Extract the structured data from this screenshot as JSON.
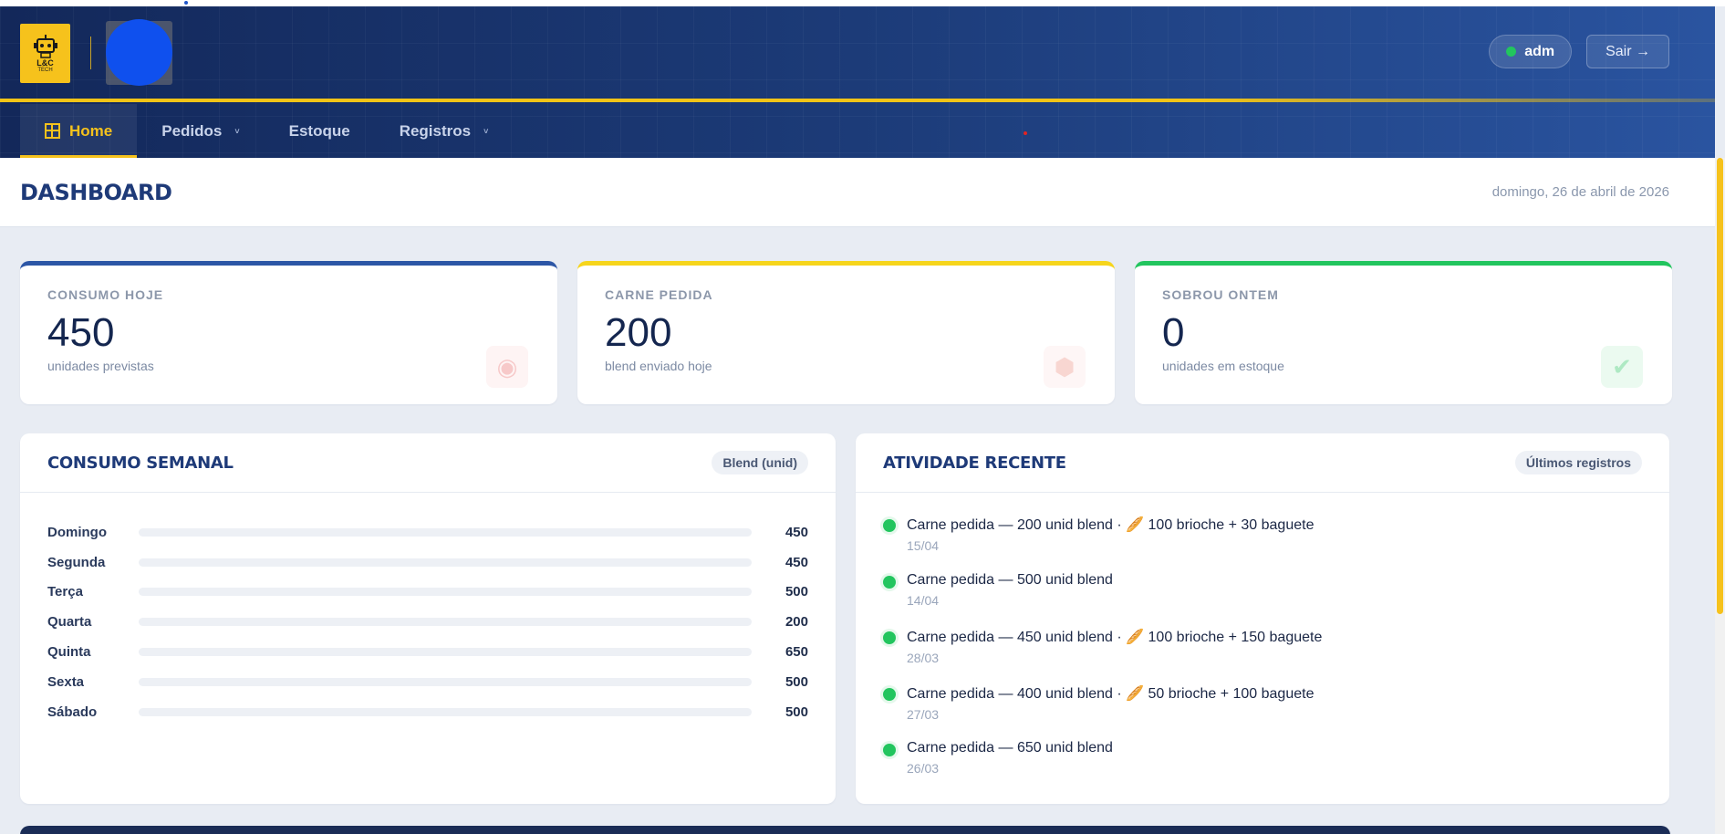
{
  "brand": {
    "logo_text": "L&C",
    "logo_sub": "TECH"
  },
  "header": {
    "user_name": "adm",
    "logout_label": "Sair →"
  },
  "nav": {
    "items": [
      {
        "label": "Home",
        "active": true
      },
      {
        "label": "Pedidos",
        "caret": "˅"
      },
      {
        "label": "Estoque"
      },
      {
        "label": "Registros",
        "caret": "˅"
      }
    ]
  },
  "page": {
    "title": "DASHBOARD",
    "date": "domingo, 26 de abril de 2026"
  },
  "stats": [
    {
      "label": "CONSUMO HOJE",
      "value": "450",
      "sub": "unidades previstas",
      "icon": "meat-icon"
    },
    {
      "label": "CARNE PEDIDA",
      "value": "200",
      "sub": "blend enviado hoje",
      "icon": "box-icon"
    },
    {
      "label": "SOBROU ONTEM",
      "value": "0",
      "sub": "unidades em estoque",
      "icon": "check-icon"
    }
  ],
  "weekly": {
    "title": "CONSUMO SEMANAL",
    "badge": "Blend (unid)",
    "max": 650,
    "rows": [
      {
        "day": "Domingo",
        "value": 450,
        "highlight": true
      },
      {
        "day": "Segunda",
        "value": 450
      },
      {
        "day": "Terça",
        "value": 500
      },
      {
        "day": "Quarta",
        "value": 200
      },
      {
        "day": "Quinta",
        "value": 650
      },
      {
        "day": "Sexta",
        "value": 500
      },
      {
        "day": "Sábado",
        "value": 500
      }
    ]
  },
  "activity": {
    "title": "ATIVIDADE RECENTE",
    "badge": "Últimos registros",
    "items": [
      {
        "text": "Carne pedida — 200 unid blend · 🥖 100 brioche + 30 baguete",
        "date": "15/04"
      },
      {
        "text": "Carne pedida — 500 unid blend",
        "date": "14/04"
      },
      {
        "text": "Carne pedida — 450 unid blend · 🥖 100 brioche + 150 baguete",
        "date": "28/03"
      },
      {
        "text": "Carne pedida — 400 unid blend · 🥖 50 brioche + 100 baguete",
        "date": "27/03"
      },
      {
        "text": "Carne pedida — 650 unid blend",
        "date": "26/03"
      }
    ]
  },
  "colors": {
    "accent_gold": "#f6c21c",
    "primary_blue": "#2d57a7",
    "success_green": "#22c55e"
  }
}
